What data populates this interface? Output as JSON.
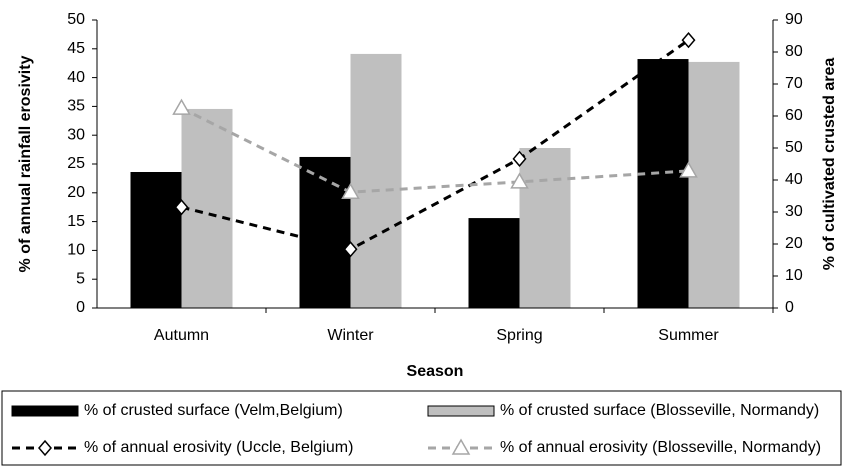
{
  "chart_data": {
    "type": "bar",
    "x_label": "Season",
    "y_label": "% of annual rainfall erosivity",
    "y2_label": "% of cultivated crusted area",
    "categories": [
      "Autumn",
      "Winter",
      "Spring",
      "Summer"
    ],
    "ylim": [
      0,
      50
    ],
    "yticks": [
      0,
      5,
      10,
      15,
      20,
      25,
      30,
      35,
      40,
      45,
      50
    ],
    "y2lim": [
      0,
      90
    ],
    "y2ticks": [
      0,
      10,
      20,
      30,
      40,
      50,
      60,
      70,
      80,
      90
    ],
    "legend": "bottom",
    "series": [
      {
        "name": "% of crusted surface (Velm,Belgium)",
        "type": "bar",
        "axis": "y2",
        "color": "#000000",
        "values": [
          42.5,
          47.2,
          28.1,
          77.8
        ]
      },
      {
        "name": "% of crusted surface (Blosseville, Normandy)",
        "type": "bar",
        "axis": "y2",
        "color": "#bfbfbf",
        "values": [
          62.2,
          79.4,
          50,
          76.9
        ]
      },
      {
        "name": "% of annual erosivity (Uccle, Belgium)",
        "type": "line",
        "axis": "y",
        "color": "#000000",
        "marker": "diamond",
        "values": [
          17.5,
          10.2,
          25.9,
          46.5
        ]
      },
      {
        "name": "% of annual erosivity (Blosseville, Normandy)",
        "type": "line",
        "axis": "y",
        "color": "#a6a6a6",
        "marker": "triangle",
        "values": [
          34.7,
          20.1,
          21.9,
          23.8
        ]
      }
    ]
  }
}
